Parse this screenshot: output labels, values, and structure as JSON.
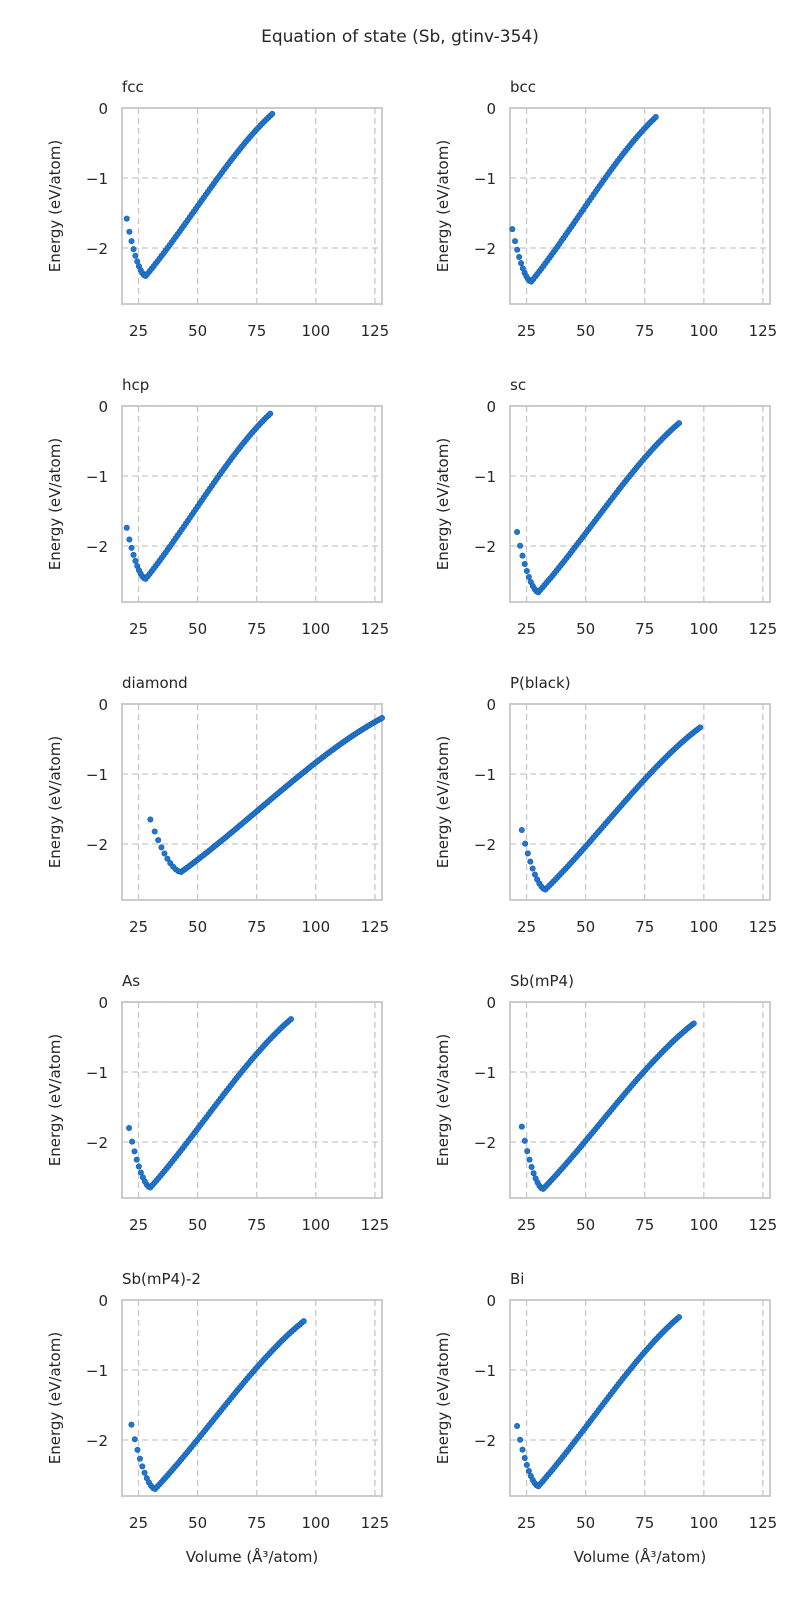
{
  "suptitle": "Equation of state (Sb, gtinv-354)",
  "colors": {
    "points": "#1f77d4",
    "points_edge": "#185a9d",
    "grid": "#c8c8c8",
    "frame": "#cccccc"
  },
  "chart_data": [
    {
      "type": "scatter",
      "title": "fcc",
      "xlabel": "",
      "ylabel": "Energy (eV/atom)",
      "xlim": [
        18,
        128
      ],
      "ylim": [
        -2.8,
        0.0
      ],
      "xticks": [
        25,
        50,
        75,
        100,
        125
      ],
      "yticks": [
        0,
        -1,
        -2
      ],
      "grid": true,
      "curve": {
        "v_start": 20,
        "v_min": 28,
        "v_end": 82,
        "e_start": -1.58,
        "e_min": -2.4,
        "e_end": -0.07
      }
    },
    {
      "type": "scatter",
      "title": "bcc",
      "xlabel": "",
      "ylabel": "Energy (eV/atom)",
      "xlim": [
        18,
        128
      ],
      "ylim": [
        -2.8,
        0.0
      ],
      "xticks": [
        25,
        50,
        75,
        100,
        125
      ],
      "yticks": [
        0,
        -1,
        -2
      ],
      "grid": true,
      "curve": {
        "v_start": 19,
        "v_min": 27,
        "v_end": 80,
        "e_start": -1.73,
        "e_min": -2.48,
        "e_end": -0.12
      }
    },
    {
      "type": "scatter",
      "title": "hcp",
      "xlabel": "",
      "ylabel": "Energy (eV/atom)",
      "xlim": [
        18,
        128
      ],
      "ylim": [
        -2.8,
        0.0
      ],
      "xticks": [
        25,
        50,
        75,
        100,
        125
      ],
      "yticks": [
        0,
        -1,
        -2
      ],
      "grid": true,
      "curve": {
        "v_start": 20,
        "v_min": 28,
        "v_end": 81,
        "e_start": -1.74,
        "e_min": -2.47,
        "e_end": -0.1
      }
    },
    {
      "type": "scatter",
      "title": "sc",
      "xlabel": "",
      "ylabel": "Energy (eV/atom)",
      "xlim": [
        18,
        128
      ],
      "ylim": [
        -2.8,
        0.0
      ],
      "xticks": [
        25,
        50,
        75,
        100,
        125
      ],
      "yticks": [
        0,
        -1,
        -2
      ],
      "grid": true,
      "curve": {
        "v_start": 21,
        "v_min": 30,
        "v_end": 90,
        "e_start": -1.8,
        "e_min": -2.66,
        "e_end": -0.23
      }
    },
    {
      "type": "scatter",
      "title": "diamond",
      "xlabel": "",
      "ylabel": "Energy (eV/atom)",
      "xlim": [
        18,
        128
      ],
      "ylim": [
        -2.8,
        0.0
      ],
      "xticks": [
        25,
        50,
        75,
        100,
        125
      ],
      "yticks": [
        0,
        -1,
        -2
      ],
      "grid": true,
      "curve": {
        "v_start": 30,
        "v_min": 43,
        "v_end": 128,
        "e_start": -1.65,
        "e_min": -2.4,
        "e_end": -0.2
      }
    },
    {
      "type": "scatter",
      "title": "P(black)",
      "xlabel": "",
      "ylabel": "Energy (eV/atom)",
      "xlim": [
        18,
        128
      ],
      "ylim": [
        -2.8,
        0.0
      ],
      "xticks": [
        25,
        50,
        75,
        100,
        125
      ],
      "yticks": [
        0,
        -1,
        -2
      ],
      "grid": true,
      "curve": {
        "v_start": 23,
        "v_min": 33,
        "v_end": 99,
        "e_start": -1.8,
        "e_min": -2.65,
        "e_end": -0.32
      }
    },
    {
      "type": "scatter",
      "title": "As",
      "xlabel": "",
      "ylabel": "Energy (eV/atom)",
      "xlim": [
        18,
        128
      ],
      "ylim": [
        -2.8,
        0.0
      ],
      "xticks": [
        25,
        50,
        75,
        100,
        125
      ],
      "yticks": [
        0,
        -1,
        -2
      ],
      "grid": true,
      "curve": {
        "v_start": 21,
        "v_min": 30,
        "v_end": 90,
        "e_start": -1.8,
        "e_min": -2.65,
        "e_end": -0.23
      }
    },
    {
      "type": "scatter",
      "title": "Sb(mP4)",
      "xlabel": "",
      "ylabel": "Energy (eV/atom)",
      "xlim": [
        18,
        128
      ],
      "ylim": [
        -2.8,
        0.0
      ],
      "xticks": [
        25,
        50,
        75,
        100,
        125
      ],
      "yticks": [
        0,
        -1,
        -2
      ],
      "grid": true,
      "curve": {
        "v_start": 23,
        "v_min": 32,
        "v_end": 96,
        "e_start": -1.78,
        "e_min": -2.67,
        "e_end": -0.3
      }
    },
    {
      "type": "scatter",
      "title": "Sb(mP4)-2",
      "xlabel": "Volume (Å³/atom)",
      "ylabel": "Energy (eV/atom)",
      "xlim": [
        18,
        128
      ],
      "ylim": [
        -2.8,
        0.0
      ],
      "xticks": [
        25,
        50,
        75,
        100,
        125
      ],
      "yticks": [
        0,
        -1,
        -2
      ],
      "grid": true,
      "curve": {
        "v_start": 22,
        "v_min": 32,
        "v_end": 95,
        "e_start": -1.78,
        "e_min": -2.7,
        "e_end": -0.3
      }
    },
    {
      "type": "scatter",
      "title": "Bi",
      "xlabel": "Volume (Å³/atom)",
      "ylabel": "Energy (eV/atom)",
      "xlim": [
        18,
        128
      ],
      "ylim": [
        -2.8,
        0.0
      ],
      "xticks": [
        25,
        50,
        75,
        100,
        125
      ],
      "yticks": [
        0,
        -1,
        -2
      ],
      "grid": true,
      "curve": {
        "v_start": 21,
        "v_min": 30,
        "v_end": 90,
        "e_start": -1.8,
        "e_min": -2.66,
        "e_end": -0.23
      }
    }
  ]
}
